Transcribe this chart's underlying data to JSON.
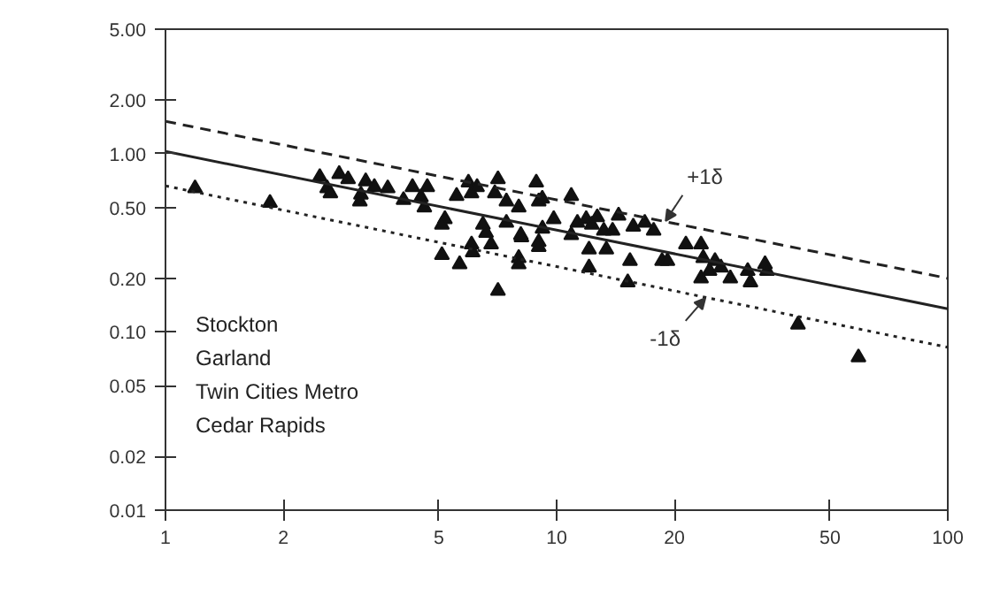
{
  "chart_data": {
    "type": "scatter",
    "log": "xy",
    "grid": false,
    "marker": "triangle",
    "xlim": [
      1,
      100
    ],
    "ylim": [
      0.01,
      5
    ],
    "xticks": [
      1,
      2,
      5,
      10,
      20,
      50,
      100
    ],
    "yticks": [
      {
        "value": 0.01,
        "label": "0.01"
      },
      {
        "value": 0.02,
        "label": "0.02"
      },
      {
        "value": 0.05,
        "label": "0.05"
      },
      {
        "value": 0.1,
        "label": "0.10"
      },
      {
        "value": 0.2,
        "label": "0.20"
      },
      {
        "value": 0.5,
        "label": "0.50"
      },
      {
        "value": 1,
        "label": "1.00"
      },
      {
        "value": 2,
        "label": "2.00"
      },
      {
        "value": 5,
        "label": "5.00"
      }
    ],
    "annotations": [
      "Stockton",
      "Garland",
      "Twin Cities Metro",
      "Cedar Rapids",
      {
        "text": "+1δ",
        "x": 19,
        "y": 0.42
      },
      {
        "text": "-1δ",
        "x": 24,
        "y": 0.155
      }
    ],
    "series": [
      {
        "color": "#111111",
        "x": [
          1.19,
          1.85,
          2.48,
          2.59,
          2.64,
          2.78,
          2.93,
          3.14,
          3.16,
          3.25,
          3.42,
          3.7,
          4.06,
          4.28,
          4.5,
          4.67,
          4.59,
          5.18,
          5.09,
          5.09,
          5.55,
          5.65,
          5.95,
          6.06,
          6.26,
          6.06,
          6.1,
          6.48,
          6.6,
          7.08,
          6.95,
          6.8,
          7.08,
          7.44,
          7.44,
          8.0,
          8.0,
          8.0,
          8.1,
          8.87,
          9.0,
          9.2,
          9.0,
          9.19,
          8.13,
          9.0,
          9.83,
          10.9,
          10.9,
          11.3,
          11.9,
          12.1,
          12.1,
          12.3,
          12.7,
          13.2,
          13.4,
          13.9,
          14.4,
          15.2,
          15.4,
          15.7,
          16.8,
          17.7,
          18.6,
          19.2,
          21.4,
          23.4,
          23.7,
          23.4,
          24.6,
          25.4,
          26.3,
          27.8,
          30.8,
          31.3,
          34.1,
          34.5,
          41.4,
          59.1
        ],
        "values": [
          0.64,
          0.53,
          0.74,
          0.64,
          0.6,
          0.77,
          0.72,
          0.54,
          0.59,
          0.7,
          0.65,
          0.64,
          0.55,
          0.65,
          0.57,
          0.65,
          0.5,
          0.43,
          0.4,
          0.27,
          0.58,
          0.24,
          0.69,
          0.6,
          0.65,
          0.31,
          0.28,
          0.4,
          0.36,
          0.72,
          0.6,
          0.31,
          0.17,
          0.54,
          0.41,
          0.5,
          0.26,
          0.24,
          0.35,
          0.69,
          0.54,
          0.38,
          0.32,
          0.56,
          0.34,
          0.3,
          0.43,
          0.58,
          0.35,
          0.41,
          0.43,
          0.29,
          0.23,
          0.4,
          0.44,
          0.37,
          0.29,
          0.37,
          0.45,
          0.19,
          0.25,
          0.39,
          0.41,
          0.37,
          0.25,
          0.25,
          0.31,
          0.31,
          0.26,
          0.2,
          0.22,
          0.25,
          0.23,
          0.2,
          0.22,
          0.19,
          0.24,
          0.22,
          0.11,
          0.072
        ]
      },
      {
        "type": "line",
        "color": "#222222",
        "line_style": "solid",
        "marker": "none",
        "x": [
          1,
          100
        ],
        "values": [
          1.03,
          0.135
        ]
      },
      {
        "type": "line",
        "color": "#222222",
        "line_style": "dashed",
        "marker": "none",
        "x": [
          1,
          100
        ],
        "values": [
          1.52,
          0.2
        ]
      },
      {
        "type": "line",
        "color": "#222222",
        "line_style": "dotted",
        "marker": "none",
        "x": [
          1,
          100
        ],
        "values": [
          0.66,
          0.082
        ]
      }
    ]
  }
}
